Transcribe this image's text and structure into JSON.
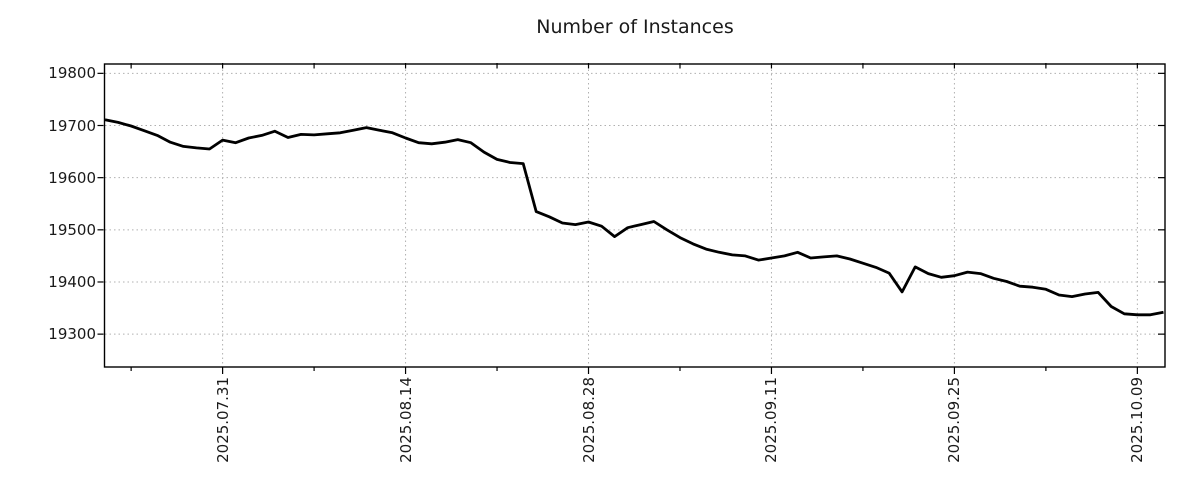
{
  "chart_data": {
    "type": "line",
    "title": "Number of Instances",
    "xlabel": "",
    "ylabel": "",
    "legend": "none",
    "grid": true,
    "series_color": "#000000",
    "grid_color": "#b0b0b0",
    "text_color": "#1a1a1a",
    "ylim": [
      19237,
      19816
    ],
    "yticks": [
      19300,
      19400,
      19500,
      19600,
      19700,
      19800
    ],
    "xticks_labeled": [
      "2025.07.31",
      "2025.08.14",
      "2025.08.28",
      "2025.09.11",
      "2025.09.25",
      "2025.10.09"
    ],
    "xticks_minor": [
      "2025.07.24",
      "2025.08.07",
      "2025.08.21",
      "2025.09.04",
      "2025.09.18",
      "2025.10.02"
    ],
    "x": [
      "2025.07.22",
      "2025.07.23",
      "2025.07.24",
      "2025.07.25",
      "2025.07.26",
      "2025.07.27",
      "2025.07.28",
      "2025.07.29",
      "2025.07.30",
      "2025.07.31",
      "2025.08.01",
      "2025.08.02",
      "2025.08.03",
      "2025.08.04",
      "2025.08.05",
      "2025.08.06",
      "2025.08.07",
      "2025.08.08",
      "2025.08.09",
      "2025.08.10",
      "2025.08.11",
      "2025.08.12",
      "2025.08.13",
      "2025.08.14",
      "2025.08.15",
      "2025.08.16",
      "2025.08.17",
      "2025.08.18",
      "2025.08.19",
      "2025.08.20",
      "2025.08.21",
      "2025.08.22",
      "2025.08.23",
      "2025.08.24",
      "2025.08.25",
      "2025.08.26",
      "2025.08.27",
      "2025.08.28",
      "2025.08.29",
      "2025.08.30",
      "2025.08.31",
      "2025.09.01",
      "2025.09.02",
      "2025.09.03",
      "2025.09.04",
      "2025.09.05",
      "2025.09.06",
      "2025.09.07",
      "2025.09.08",
      "2025.09.09",
      "2025.09.10",
      "2025.09.11",
      "2025.09.12",
      "2025.09.13",
      "2025.09.14",
      "2025.09.15",
      "2025.09.16",
      "2025.09.17",
      "2025.09.18",
      "2025.09.19",
      "2025.09.20",
      "2025.09.21",
      "2025.09.22",
      "2025.09.23",
      "2025.09.24",
      "2025.09.25",
      "2025.09.26",
      "2025.09.27",
      "2025.09.28",
      "2025.09.29",
      "2025.09.30",
      "2025.10.01",
      "2025.10.02",
      "2025.10.03",
      "2025.10.04",
      "2025.10.05",
      "2025.10.06",
      "2025.10.07",
      "2025.10.08",
      "2025.10.09",
      "2025.10.10",
      "2025.10.11"
    ],
    "values": [
      19711,
      19706,
      19699,
      19690,
      19681,
      19668,
      19660,
      19657,
      19655,
      19672,
      19667,
      19676,
      19681,
      19689,
      19677,
      19683,
      19682,
      19684,
      19686,
      19691,
      19696,
      19691,
      19686,
      19676,
      19667,
      19665,
      19668,
      19673,
      19667,
      19649,
      19635,
      19629,
      19627,
      19535,
      19525,
      19513,
      19510,
      19515,
      19507,
      19487,
      19504,
      19510,
      19516,
      19500,
      19485,
      19473,
      19463,
      19457,
      19452,
      19450,
      19442,
      19446,
      19450,
      19457,
      19446,
      19448,
      19450,
      19444,
      19436,
      19428,
      19417,
      19381,
      19429,
      19416,
      19409,
      19412,
      19419,
      19416,
      19407,
      19401,
      19392,
      19390,
      19386,
      19375,
      19372,
      19377,
      19380,
      19353,
      19339,
      19337,
      19337,
      19342
    ]
  }
}
